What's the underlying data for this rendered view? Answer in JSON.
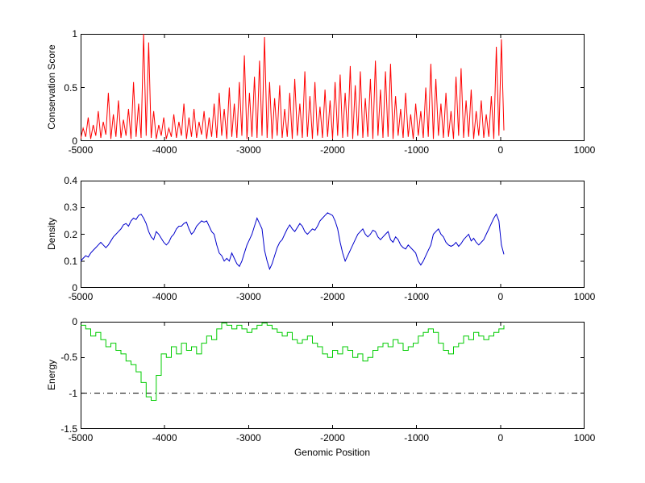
{
  "chart_data": [
    {
      "type": "line",
      "ylabel": "Conservation Score",
      "xlabel": "",
      "xlim": [
        -5000,
        1000
      ],
      "ylim": [
        0,
        1
      ],
      "xticks": [
        -5000,
        -4000,
        -3000,
        -2000,
        -1000,
        0,
        1000
      ],
      "xticklabels": [
        "-5000",
        "-4000",
        "-3000",
        "-2000",
        "-1000",
        "0",
        "1000"
      ],
      "yticks": [
        0,
        0.5,
        1
      ],
      "yticklabels": [
        "0",
        "0.5",
        "1"
      ],
      "color": "#ff0000",
      "step": false,
      "series": {
        "x0": -5000,
        "dx": 30,
        "y": [
          0.02,
          0.12,
          0.04,
          0.22,
          0.02,
          0.15,
          0.05,
          0.28,
          0.03,
          0.18,
          0.06,
          0.45,
          0.02,
          0.25,
          0.04,
          0.38,
          0.03,
          0.2,
          0.05,
          0.3,
          0.02,
          0.55,
          0.04,
          0.35,
          0.03,
          1.0,
          0.05,
          0.92,
          0.03,
          0.28,
          0.02,
          0.15,
          0.05,
          0.22,
          0.02,
          0.12,
          0.04,
          0.25,
          0.03,
          0.18,
          0.05,
          0.35,
          0.02,
          0.22,
          0.04,
          0.3,
          0.03,
          0.18,
          0.06,
          0.28,
          0.02,
          0.22,
          0.04,
          0.35,
          0.03,
          0.45,
          0.05,
          0.3,
          0.02,
          0.5,
          0.04,
          0.35,
          0.03,
          0.55,
          0.05,
          0.8,
          0.02,
          0.45,
          0.04,
          0.6,
          0.03,
          0.75,
          0.05,
          0.97,
          0.03,
          0.55,
          0.02,
          0.4,
          0.05,
          0.52,
          0.03,
          0.3,
          0.04,
          0.45,
          0.02,
          0.58,
          0.05,
          0.35,
          0.03,
          0.65,
          0.04,
          0.42,
          0.02,
          0.55,
          0.05,
          0.32,
          0.03,
          0.48,
          0.04,
          0.38,
          0.02,
          0.55,
          0.05,
          0.62,
          0.03,
          0.45,
          0.04,
          0.7,
          0.02,
          0.52,
          0.05,
          0.65,
          0.03,
          0.4,
          0.04,
          0.58,
          0.02,
          0.75,
          0.05,
          0.48,
          0.03,
          0.65,
          0.04,
          0.72,
          0.02,
          0.42,
          0.05,
          0.3,
          0.03,
          0.45,
          0.04,
          0.25,
          0.02,
          0.35,
          0.05,
          0.28,
          0.03,
          0.5,
          0.04,
          0.72,
          0.02,
          0.58,
          0.05,
          0.35,
          0.03,
          0.45,
          0.04,
          0.28,
          0.02,
          0.6,
          0.05,
          0.68,
          0.03,
          0.38,
          0.04,
          0.48,
          0.02,
          0.28,
          0.05,
          0.38,
          0.03,
          0.25,
          0.04,
          0.42,
          0.02,
          0.88,
          0.05,
          0.95,
          0.1
        ]
      }
    },
    {
      "type": "line",
      "ylabel": "Density",
      "xlabel": "",
      "xlim": [
        -5000,
        1000
      ],
      "ylim": [
        0,
        0.4
      ],
      "xticks": [
        -5000,
        -4000,
        -3000,
        -2000,
        -1000,
        0,
        1000
      ],
      "xticklabels": [
        "-5000",
        "-4000",
        "-3000",
        "-2000",
        "-1000",
        "0",
        "1000"
      ],
      "yticks": [
        0,
        0.1,
        0.2,
        0.3,
        0.4
      ],
      "yticklabels": [
        "0",
        "0.1",
        "0.2",
        "0.3",
        "0.4"
      ],
      "color": "#0000cc",
      "step": false,
      "series": {
        "x0": -5000,
        "dx": 30,
        "y": [
          0.1,
          0.11,
          0.12,
          0.115,
          0.13,
          0.14,
          0.15,
          0.16,
          0.17,
          0.16,
          0.15,
          0.16,
          0.175,
          0.19,
          0.2,
          0.21,
          0.22,
          0.235,
          0.24,
          0.23,
          0.25,
          0.26,
          0.255,
          0.27,
          0.275,
          0.26,
          0.24,
          0.21,
          0.19,
          0.18,
          0.21,
          0.2,
          0.185,
          0.17,
          0.16,
          0.17,
          0.19,
          0.2,
          0.22,
          0.23,
          0.23,
          0.24,
          0.245,
          0.22,
          0.2,
          0.21,
          0.23,
          0.24,
          0.25,
          0.245,
          0.25,
          0.23,
          0.21,
          0.2,
          0.16,
          0.13,
          0.12,
          0.1,
          0.11,
          0.1,
          0.13,
          0.11,
          0.09,
          0.08,
          0.1,
          0.13,
          0.16,
          0.18,
          0.2,
          0.23,
          0.26,
          0.24,
          0.22,
          0.14,
          0.1,
          0.07,
          0.09,
          0.12,
          0.15,
          0.17,
          0.18,
          0.2,
          0.22,
          0.235,
          0.22,
          0.21,
          0.225,
          0.24,
          0.23,
          0.21,
          0.2,
          0.21,
          0.22,
          0.215,
          0.23,
          0.25,
          0.26,
          0.27,
          0.28,
          0.275,
          0.27,
          0.25,
          0.22,
          0.17,
          0.13,
          0.1,
          0.12,
          0.14,
          0.16,
          0.18,
          0.2,
          0.21,
          0.22,
          0.2,
          0.19,
          0.2,
          0.215,
          0.21,
          0.19,
          0.18,
          0.19,
          0.2,
          0.21,
          0.18,
          0.17,
          0.19,
          0.18,
          0.16,
          0.15,
          0.145,
          0.16,
          0.15,
          0.14,
          0.13,
          0.1,
          0.085,
          0.1,
          0.12,
          0.14,
          0.16,
          0.2,
          0.21,
          0.22,
          0.2,
          0.19,
          0.17,
          0.16,
          0.155,
          0.16,
          0.17,
          0.155,
          0.165,
          0.18,
          0.19,
          0.2,
          0.175,
          0.185,
          0.17,
          0.16,
          0.17,
          0.18,
          0.2,
          0.22,
          0.24,
          0.26,
          0.275,
          0.25,
          0.16,
          0.125
        ]
      }
    },
    {
      "type": "line",
      "ylabel": "Energy",
      "xlabel": "Genomic Position",
      "xlim": [
        -5000,
        1000
      ],
      "ylim": [
        -1.5,
        0
      ],
      "xticks": [
        -5000,
        -4000,
        -3000,
        -2000,
        -1000,
        0,
        1000
      ],
      "xticklabels": [
        "-5000",
        "-4000",
        "-3000",
        "-2000",
        "-1000",
        "0",
        "1000"
      ],
      "yticks": [
        -1.5,
        -1,
        -0.5,
        0
      ],
      "yticklabels": [
        "-1.5",
        "-1",
        "-0.5",
        "0"
      ],
      "color": "#00cc00",
      "step": true,
      "refline": {
        "y": -1,
        "color": "#000000",
        "style": "dashdot"
      },
      "series": {
        "x0": -5000,
        "dx": 60,
        "y": [
          -0.05,
          -0.1,
          -0.2,
          -0.15,
          -0.25,
          -0.35,
          -0.3,
          -0.4,
          -0.45,
          -0.55,
          -0.6,
          -0.7,
          -0.85,
          -1.05,
          -1.1,
          -0.75,
          -0.45,
          -0.5,
          -0.35,
          -0.45,
          -0.3,
          -0.4,
          -0.35,
          -0.45,
          -0.3,
          -0.2,
          -0.25,
          -0.1,
          -0.02,
          -0.05,
          -0.1,
          -0.05,
          -0.1,
          -0.15,
          -0.1,
          -0.05,
          -0.02,
          -0.05,
          -0.1,
          -0.15,
          -0.2,
          -0.15,
          -0.25,
          -0.3,
          -0.25,
          -0.2,
          -0.3,
          -0.35,
          -0.45,
          -0.5,
          -0.4,
          -0.45,
          -0.35,
          -0.4,
          -0.5,
          -0.45,
          -0.55,
          -0.5,
          -0.4,
          -0.35,
          -0.3,
          -0.35,
          -0.25,
          -0.3,
          -0.4,
          -0.35,
          -0.3,
          -0.2,
          -0.15,
          -0.1,
          -0.15,
          -0.3,
          -0.4,
          -0.45,
          -0.35,
          -0.3,
          -0.2,
          -0.25,
          -0.15,
          -0.2,
          -0.25,
          -0.2,
          -0.15,
          -0.1,
          -0.05
        ]
      }
    }
  ]
}
